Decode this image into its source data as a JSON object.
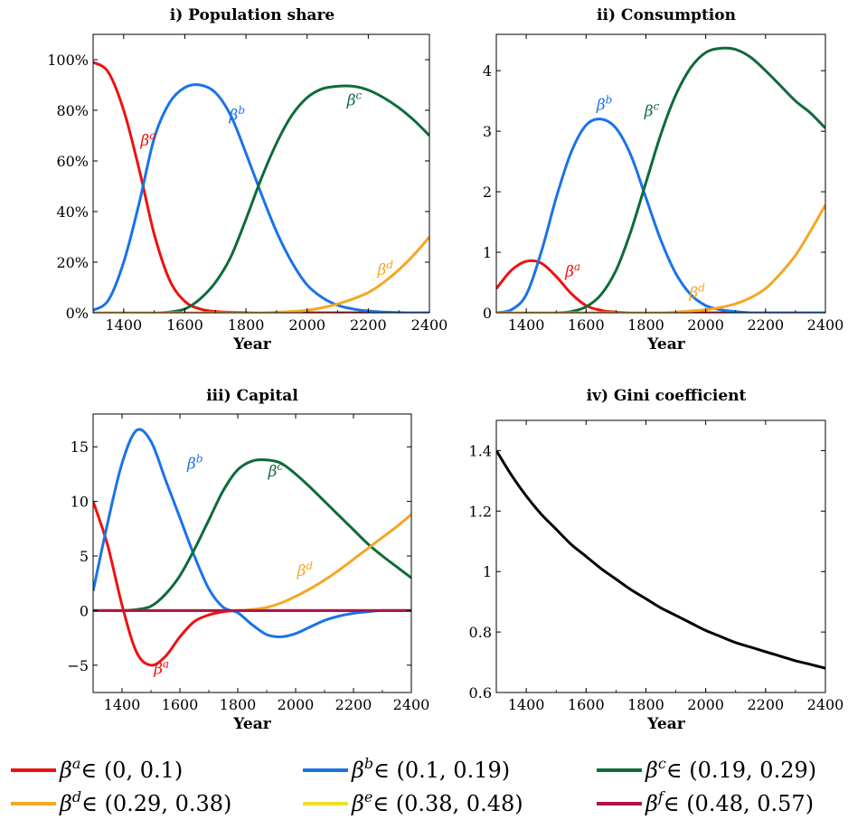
{
  "colors": {
    "a": "#ee1111",
    "b": "#1a73e8",
    "c": "#0e6b3a",
    "d": "#f5a623",
    "e": "#f0e02a",
    "f": "#b0124a",
    "gini": "#000000"
  },
  "legend": [
    {
      "key": "a",
      "beta": "β",
      "sup": "a",
      "range": "∈ (0, 0.1)"
    },
    {
      "key": "b",
      "beta": "β",
      "sup": "b",
      "range": "∈ (0.1, 0.19)"
    },
    {
      "key": "c",
      "beta": "β",
      "sup": "c",
      "range": "∈ (0.19, 0.29)"
    },
    {
      "key": "d",
      "beta": "β",
      "sup": "d",
      "range": "∈ (0.29, 0.38)"
    },
    {
      "key": "e",
      "beta": "β",
      "sup": "e",
      "range": "∈ (0.38, 0.48)"
    },
    {
      "key": "f",
      "beta": "β",
      "sup": "f",
      "range": "∈ (0.48, 0.57)"
    }
  ],
  "chart_data": [
    {
      "id": "p1",
      "type": "line",
      "title": "i) Population share",
      "xlabel": "Year",
      "xlim": [
        1300,
        2400
      ],
      "ylim": [
        0,
        110
      ],
      "xticks": [
        "1400",
        "1600",
        "1800",
        "2000",
        "2200",
        "2400"
      ],
      "yticks": [
        "0%",
        "20%",
        "40%",
        "60%",
        "80%",
        "100%"
      ],
      "ytick_values": [
        0,
        20,
        40,
        60,
        80,
        100
      ],
      "x": [
        1300,
        1350,
        1400,
        1450,
        1500,
        1550,
        1600,
        1650,
        1700,
        1750,
        1800,
        1850,
        1900,
        1950,
        2000,
        2050,
        2100,
        2150,
        2200,
        2250,
        2300,
        2350,
        2400
      ],
      "series": [
        {
          "key": "a",
          "values": [
            99,
            95,
            80,
            57,
            31,
            13,
            4.5,
            1.5,
            0.5,
            0.2,
            0.1,
            0,
            0,
            0,
            0,
            0,
            0,
            0,
            0,
            0,
            0,
            0,
            0
          ]
        },
        {
          "key": "b",
          "values": [
            1,
            5,
            20,
            43,
            69,
            83,
            89,
            90,
            87,
            78,
            63,
            47,
            32,
            20,
            11,
            6,
            3,
            1.5,
            0.7,
            0.3,
            0.1,
            0,
            0
          ]
        },
        {
          "key": "c",
          "values": [
            0,
            0,
            0,
            0,
            0,
            0.3,
            1.5,
            5.5,
            12,
            22,
            37,
            53,
            67,
            78,
            85,
            88.5,
            89.5,
            89.5,
            88,
            85,
            81,
            76,
            70
          ]
        },
        {
          "key": "d",
          "values": [
            0,
            0,
            0,
            0,
            0,
            0,
            0,
            0,
            0,
            0,
            0,
            0,
            0.2,
            0.5,
            1,
            2,
            3.5,
            5.5,
            8,
            12,
            17,
            23,
            30
          ]
        }
      ],
      "annotations": [
        {
          "key": "a",
          "text": "β",
          "sup": "a",
          "x": 1455,
          "y": 66
        },
        {
          "key": "b",
          "text": "β",
          "sup": "b",
          "x": 1745,
          "y": 76
        },
        {
          "key": "c",
          "text": "β",
          "sup": "c",
          "x": 2130,
          "y": 82
        },
        {
          "key": "d",
          "text": "β",
          "sup": "d",
          "x": 2230,
          "y": 15
        }
      ]
    },
    {
      "id": "p2",
      "type": "line",
      "title": "ii) Consumption",
      "xlabel": "Year",
      "xlim": [
        1300,
        2400
      ],
      "ylim": [
        0,
        4.6
      ],
      "xticks": [
        "1400",
        "1600",
        "1800",
        "2000",
        "2200",
        "2400"
      ],
      "yticks": [
        "0",
        "1",
        "2",
        "3",
        "4"
      ],
      "ytick_values": [
        0,
        1,
        2,
        3,
        4
      ],
      "x": [
        1300,
        1350,
        1400,
        1450,
        1500,
        1550,
        1600,
        1650,
        1700,
        1750,
        1800,
        1850,
        1900,
        1950,
        2000,
        2050,
        2100,
        2150,
        2200,
        2250,
        2300,
        2350,
        2400
      ],
      "series": [
        {
          "key": "a",
          "values": [
            0.4,
            0.7,
            0.85,
            0.82,
            0.6,
            0.32,
            0.12,
            0.04,
            0.01,
            0,
            0,
            0,
            0,
            0,
            0,
            0,
            0,
            0,
            0,
            0,
            0,
            0,
            0
          ]
        },
        {
          "key": "b",
          "values": [
            0,
            0.05,
            0.3,
            1.0,
            1.9,
            2.65,
            3.1,
            3.2,
            3.05,
            2.6,
            1.9,
            1.2,
            0.65,
            0.3,
            0.12,
            0.05,
            0.02,
            0,
            0,
            0,
            0,
            0,
            0
          ]
        },
        {
          "key": "c",
          "values": [
            0,
            0,
            0,
            0,
            0,
            0.02,
            0.1,
            0.3,
            0.7,
            1.35,
            2.15,
            2.95,
            3.6,
            4.05,
            4.3,
            4.37,
            4.35,
            4.22,
            4.0,
            3.75,
            3.5,
            3.3,
            3.05
          ]
        },
        {
          "key": "d",
          "values": [
            0,
            0,
            0,
            0,
            0,
            0,
            0,
            0,
            0,
            0,
            0,
            0,
            0.01,
            0.03,
            0.05,
            0.09,
            0.15,
            0.25,
            0.4,
            0.65,
            0.95,
            1.35,
            1.78
          ]
        }
      ],
      "annotations": [
        {
          "key": "a",
          "text": "β",
          "sup": "a",
          "x": 1530,
          "y": 0.6
        },
        {
          "key": "b",
          "text": "β",
          "sup": "b",
          "x": 1635,
          "y": 3.35
        },
        {
          "key": "c",
          "text": "β",
          "sup": "c",
          "x": 1795,
          "y": 3.25
        },
        {
          "key": "d",
          "text": "β",
          "sup": "d",
          "x": 1945,
          "y": 0.25
        }
      ]
    },
    {
      "id": "p3",
      "type": "line",
      "title": "iii) Capital",
      "xlabel": "Year",
      "xlim": [
        1300,
        2400
      ],
      "ylim": [
        -7.5,
        18
      ],
      "xticks": [
        "1400",
        "1600",
        "1800",
        "2000",
        "2200",
        "2400"
      ],
      "yticks": [
        "−5",
        "0",
        "5",
        "10",
        "15"
      ],
      "ytick_values": [
        -5,
        0,
        5,
        10,
        15
      ],
      "x": [
        1300,
        1350,
        1400,
        1450,
        1500,
        1550,
        1600,
        1650,
        1700,
        1750,
        1800,
        1850,
        1900,
        1950,
        2000,
        2050,
        2100,
        2150,
        2200,
        2250,
        2300,
        2350,
        2400
      ],
      "series": [
        {
          "key": "a",
          "values": [
            10,
            6,
            0.5,
            -3.8,
            -5,
            -4.2,
            -2.4,
            -1.0,
            -0.4,
            -0.1,
            0,
            0,
            0,
            0,
            0,
            0,
            0,
            0,
            0,
            0,
            0,
            0,
            0
          ]
        },
        {
          "key": "b",
          "values": [
            1.8,
            8,
            13.5,
            16.5,
            15.5,
            12,
            8.5,
            5,
            2,
            0.3,
            -0.2,
            -1.3,
            -2.2,
            -2.4,
            -2.1,
            -1.5,
            -0.9,
            -0.5,
            -0.25,
            -0.1,
            0,
            0,
            0
          ]
        },
        {
          "key": "c",
          "values": [
            0,
            0,
            0,
            0.1,
            0.4,
            1.5,
            3.2,
            5.6,
            8.3,
            11,
            12.9,
            13.7,
            13.8,
            13.5,
            12.5,
            11.3,
            10,
            8.7,
            7.4,
            6.1,
            5,
            4,
            3
          ]
        },
        {
          "key": "d",
          "values": [
            0,
            0,
            0,
            0,
            0,
            0,
            0,
            0,
            0,
            0,
            0,
            0.1,
            0.3,
            0.7,
            1.3,
            2,
            2.8,
            3.7,
            4.7,
            5.7,
            6.7,
            7.7,
            8.8
          ]
        },
        {
          "key": "f",
          "values": [
            0,
            0,
            0,
            0,
            0,
            0,
            0,
            0,
            0,
            0,
            0,
            0,
            0,
            0,
            0,
            0,
            0,
            0,
            0,
            0,
            0,
            0,
            0
          ]
        }
      ],
      "annotations": [
        {
          "key": "a",
          "text": "β",
          "sup": "a",
          "x": 1510,
          "y": -5.8
        },
        {
          "key": "b",
          "text": "β",
          "sup": "b",
          "x": 1625,
          "y": 13
        },
        {
          "key": "c",
          "text": "β",
          "sup": "c",
          "x": 1905,
          "y": 12.3
        },
        {
          "key": "d",
          "text": "β",
          "sup": "d",
          "x": 2005,
          "y": 3.2
        }
      ]
    },
    {
      "id": "p4",
      "type": "line",
      "title": "iv) Gini coefficient",
      "xlabel": "Year",
      "xlim": [
        1300,
        2400
      ],
      "ylim": [
        0.6,
        1.5
      ],
      "xticks": [
        "1400",
        "1600",
        "1800",
        "2000",
        "2200",
        "2400"
      ],
      "yticks": [
        "0.6",
        "0.8",
        "1",
        "1.2",
        "1.4"
      ],
      "ytick_values": [
        0.6,
        0.8,
        1,
        1.2,
        1.4
      ],
      "x": [
        1300,
        1350,
        1400,
        1450,
        1500,
        1550,
        1600,
        1650,
        1700,
        1750,
        1800,
        1850,
        1900,
        1950,
        2000,
        2050,
        2100,
        2150,
        2200,
        2250,
        2300,
        2350,
        2400
      ],
      "series": [
        {
          "key": "gini",
          "values": [
            1.4,
            1.32,
            1.25,
            1.19,
            1.14,
            1.09,
            1.05,
            1.01,
            0.975,
            0.94,
            0.91,
            0.88,
            0.855,
            0.83,
            0.805,
            0.785,
            0.765,
            0.75,
            0.735,
            0.72,
            0.705,
            0.693,
            0.68
          ]
        }
      ],
      "annotations": []
    }
  ]
}
